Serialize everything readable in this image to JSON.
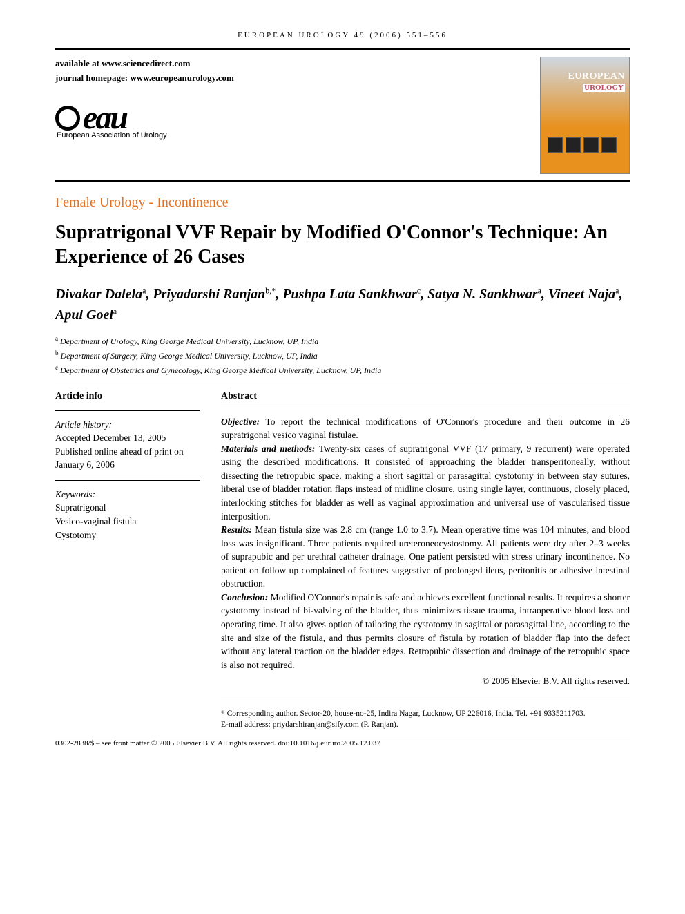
{
  "running_head": "EUROPEAN UROLOGY 49 (2006) 551–556",
  "available_at": "available at www.sciencedirect.com",
  "homepage": "journal homepage: www.europeanurology.com",
  "thumb_title": "EUROPEAN",
  "thumb_sub": "UROLOGY",
  "eau_brand": "eau",
  "eau_full": "European Association of Urology",
  "section_label": "Female Urology - Incontinence",
  "title": "Supratrigonal VVF Repair by Modified O'Connor's Technique: An Experience of 26 Cases",
  "authors_html": "Divakar Dalela|a|, Priyadarshi Ranjan|b,*|, Pushpa Lata Sankhwar|c|, Satya N. Sankhwar|a|, Vineet Naja|a|, Apul Goel|a",
  "authors": [
    {
      "name": "Divakar Dalela",
      "sup": "a"
    },
    {
      "name": "Priyadarshi Ranjan",
      "sup": "b,*"
    },
    {
      "name": "Pushpa Lata Sankhwar",
      "sup": "c"
    },
    {
      "name": "Satya N. Sankhwar",
      "sup": "a"
    },
    {
      "name": "Vineet Naja",
      "sup": "a"
    },
    {
      "name": "Apul Goel",
      "sup": "a"
    }
  ],
  "affiliations": [
    {
      "sup": "a",
      "text": "Department of Urology, King George Medical University, Lucknow, UP, India"
    },
    {
      "sup": "b",
      "text": "Department of Surgery, King George Medical University, Lucknow, UP, India"
    },
    {
      "sup": "c",
      "text": "Department of Obstetrics and Gynecology, King George Medical University, Lucknow, UP, India"
    }
  ],
  "left": {
    "head": "Article info",
    "history_label": "Article history:",
    "history_1": "Accepted December 13, 2005",
    "history_2": "Published online ahead of print on January 6, 2006",
    "keywords_label": "Keywords:",
    "keywords": [
      "Supratrigonal",
      "Vesico-vaginal fistula",
      "Cystotomy"
    ]
  },
  "abstract": {
    "head": "Abstract",
    "objective_label": "Objective:",
    "objective": " To report the technical modifications of O'Connor's procedure and their outcome in 26 supratrigonal vesico vaginal fistulae.",
    "methods_label": "Materials and methods:",
    "methods": " Twenty-six cases of supratrigonal VVF (17 primary, 9 recurrent) were operated using the described modifications. It consisted of approaching the bladder transperitoneally, without dissecting the retropubic space, making a short sagittal or parasagittal cystotomy in between stay sutures, liberal use of bladder rotation flaps instead of midline closure, using single layer, continuous, closely placed, interlocking stitches for bladder as well as vaginal approximation and universal use of vascularised tissue interposition.",
    "results_label": "Results:",
    "results": " Mean fistula size was 2.8 cm (range 1.0 to 3.7). Mean operative time was 104 minutes, and blood loss was insignificant. Three patients required ureteroneocystostomy. All patients were dry after 2–3 weeks of suprapubic and per urethral catheter drainage. One patient persisted with stress urinary incontinence. No patient on follow up complained of features suggestive of prolonged ileus, peritonitis or adhesive intestinal obstruction.",
    "conclusion_label": "Conclusion:",
    "conclusion": " Modified O'Connor's repair is safe and achieves excellent functional results. It requires a shorter cystotomy instead of bi-valving of the bladder, thus minimizes tissue trauma, intraoperative blood loss and operating time. It also gives option of tailoring the cystotomy in sagittal or parasagittal line, according to the site and size of the fistula, and thus permits closure of fistula by rotation of bladder flap into the defect without any lateral traction on the bladder edges. Retropubic dissection and drainage of the retropubic space is also not required.",
    "copyright": "© 2005 Elsevier B.V. All rights reserved."
  },
  "corr": {
    "star": "*",
    "line1": " Corresponding author. Sector-20, house-no-25, Indira Nagar, Lucknow, UP 226016, India. Tel. +91 9335211703.",
    "line2": "E-mail address: priydarshiranjan@sify.com (P. Ranjan)."
  },
  "footer": "0302-2838/$ – see front matter © 2005 Elsevier B.V. All rights reserved.  doi:10.1016/j.eururo.2005.12.037",
  "colors": {
    "section_orange": "#e37222",
    "text": "#000000",
    "bg": "#ffffff"
  },
  "typography": {
    "title_fontsize": 28,
    "body_fontsize": 13.5,
    "author_fontsize": 20
  }
}
